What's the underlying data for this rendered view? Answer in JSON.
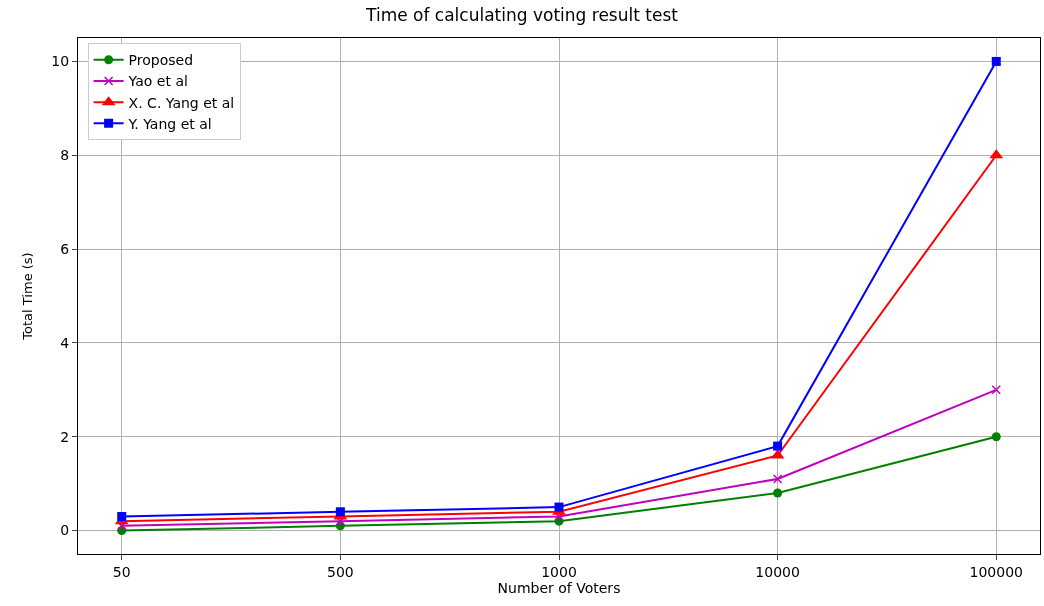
{
  "chart_data": {
    "type": "line",
    "title": "Time of calculating voting result test",
    "xlabel": "Number of Voters",
    "ylabel": "Total Time (s)",
    "categories": [
      "50",
      "500",
      "1000",
      "10000",
      "100000"
    ],
    "series": [
      {
        "name": "Proposed",
        "color": "#008000",
        "marker": "circle",
        "values": [
          0,
          0.1,
          0.2,
          0.8,
          2
        ]
      },
      {
        "name": "Yao et al",
        "color": "#bf00bf",
        "marker": "cross",
        "values": [
          0.1,
          0.2,
          0.3,
          1.1,
          3
        ]
      },
      {
        "name": "X. C. Yang et al",
        "color": "#ff0000",
        "marker": "triangle",
        "values": [
          0.2,
          0.3,
          0.4,
          1.6,
          8
        ]
      },
      {
        "name": "Y. Yang et al",
        "color": "#0000ff",
        "marker": "square",
        "values": [
          0.3,
          0.4,
          0.5,
          1.8,
          10
        ]
      }
    ],
    "ylim": [
      -0.5,
      10.5
    ],
    "yticks": [
      0,
      2,
      4,
      6,
      8,
      10
    ],
    "grid": true,
    "legend": "top left",
    "line_style": "solid"
  }
}
